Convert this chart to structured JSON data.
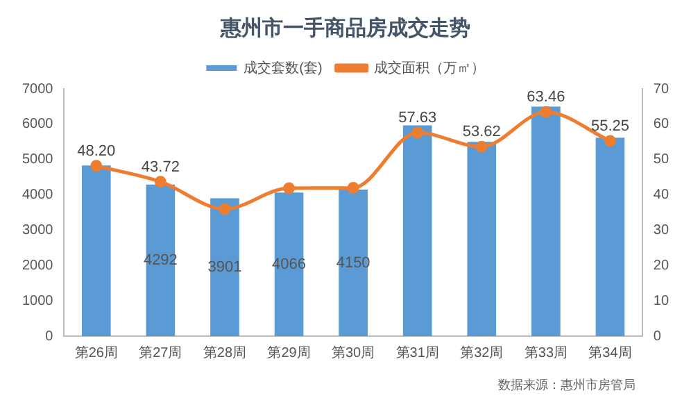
{
  "chart_data": {
    "type": "bar",
    "title": "惠州市一手商品房成交走势",
    "categories": [
      "第26周",
      "第27周",
      "第28周",
      "第29周",
      "第30周",
      "第31周",
      "第32周",
      "第33周",
      "第34周"
    ],
    "series": [
      {
        "name": "成交套数(套)",
        "color": "#5b9bd5",
        "values": [
          4830,
          4292,
          3901,
          4066,
          4150,
          5970,
          5500,
          6500,
          5620
        ],
        "value_labels": [
          null,
          "4292",
          "3901",
          "4066",
          "4150",
          null,
          null,
          null,
          null
        ]
      },
      {
        "name": "成交面积（万㎡）",
        "type": "line",
        "axis": "y2",
        "color": "#ed7d31",
        "marker": "circle",
        "values": [
          48.2,
          43.72,
          36,
          41.9,
          42,
          57.63,
          53.62,
          63.46,
          55.25
        ],
        "value_labels": [
          "48.20",
          "43.72",
          null,
          null,
          null,
          "57.63",
          "53.62",
          "63.46",
          "55.25"
        ]
      }
    ],
    "ylim": [
      0,
      7000
    ],
    "yticks": [
      0,
      1000,
      2000,
      3000,
      4000,
      5000,
      6000,
      7000
    ],
    "y2lim": [
      0,
      70
    ],
    "y2ticks": [
      0,
      10,
      20,
      30,
      40,
      50,
      60,
      70
    ],
    "grid": false,
    "legend": "top",
    "annotations": [
      "数据来源：惠州市房管局"
    ]
  }
}
